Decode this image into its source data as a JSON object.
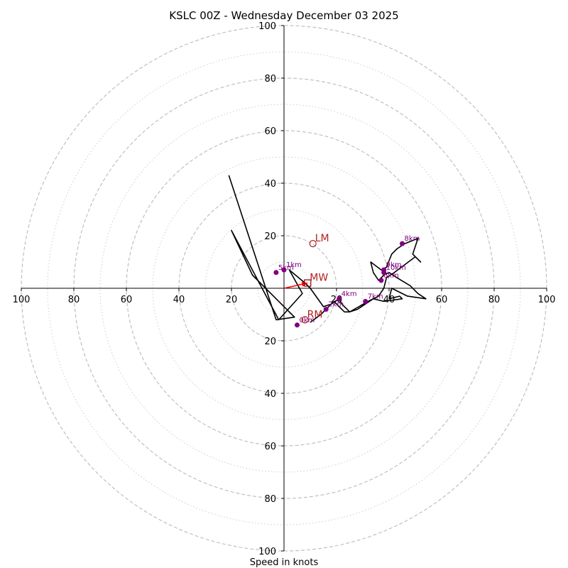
{
  "chart_data": {
    "type": "scatter",
    "chart_kind": "hodograph",
    "title": "KSLC 00Z - Wednesday December 03 2025",
    "xlabel": "Speed in knots",
    "ylabel": "",
    "xlim": [
      -100,
      100
    ],
    "ylim": [
      -100,
      100
    ],
    "grid": true,
    "ring_major": [
      20,
      40,
      60,
      80,
      100
    ],
    "ring_minor": [
      10,
      30,
      50,
      70,
      90
    ],
    "x_ticks": [
      {
        "value": -100,
        "label": "100"
      },
      {
        "value": -80,
        "label": "80"
      },
      {
        "value": -60,
        "label": "60"
      },
      {
        "value": -40,
        "label": "40"
      },
      {
        "value": -20,
        "label": "20"
      },
      {
        "value": 20,
        "label": "20"
      },
      {
        "value": 40,
        "label": "40"
      },
      {
        "value": 60,
        "label": "60"
      },
      {
        "value": 80,
        "label": "80"
      },
      {
        "value": 100,
        "label": "100"
      }
    ],
    "y_ticks": [
      {
        "value": 100,
        "label": "100"
      },
      {
        "value": 80,
        "label": "80"
      },
      {
        "value": 60,
        "label": "60"
      },
      {
        "value": 40,
        "label": "40"
      },
      {
        "value": 20,
        "label": "20"
      },
      {
        "value": -20,
        "label": "20"
      },
      {
        "value": -40,
        "label": "40"
      },
      {
        "value": -60,
        "label": "60"
      },
      {
        "value": -80,
        "label": "80"
      },
      {
        "value": -100,
        "label": "100"
      }
    ],
    "trace": [
      [
        -21,
        43
      ],
      [
        -3,
        -12
      ],
      [
        4,
        -11
      ],
      [
        -12,
        5
      ],
      [
        -20,
        22
      ],
      [
        -2,
        -12
      ],
      [
        7,
        -2
      ],
      [
        2,
        7
      ],
      [
        8,
        2
      ],
      [
        10,
        0
      ],
      [
        15,
        -7
      ],
      [
        18,
        -6
      ],
      [
        21,
        -4
      ],
      [
        22,
        -6
      ],
      [
        25,
        -9
      ],
      [
        32,
        -5
      ],
      [
        36,
        -3
      ],
      [
        38,
        0
      ],
      [
        39,
        4
      ],
      [
        42,
        6
      ],
      [
        50,
        12
      ],
      [
        52,
        10
      ],
      [
        49,
        13
      ],
      [
        51,
        19
      ],
      [
        46,
        17
      ],
      [
        43,
        15
      ],
      [
        41,
        13
      ],
      [
        39,
        8
      ],
      [
        37,
        7
      ],
      [
        33,
        10
      ],
      [
        34,
        6
      ],
      [
        36,
        3
      ],
      [
        38,
        5
      ],
      [
        40,
        6
      ],
      [
        43,
        4
      ],
      [
        48,
        1
      ],
      [
        51,
        -2
      ],
      [
        54,
        -4
      ],
      [
        47,
        -3
      ],
      [
        41,
        0
      ],
      [
        40,
        -4
      ],
      [
        44,
        -3
      ],
      [
        45,
        -4
      ],
      [
        38,
        -5
      ],
      [
        34,
        -4
      ],
      [
        28,
        -8
      ],
      [
        25,
        -9
      ],
      [
        23,
        -9
      ],
      [
        19,
        -5
      ],
      [
        14,
        -10
      ],
      [
        10,
        -13
      ]
    ],
    "height_markers": [
      {
        "label": "0km",
        "x": 5,
        "y": -14
      },
      {
        "label": "1km",
        "x": 0,
        "y": 7
      },
      {
        "label": "2km",
        "x": 16,
        "y": -8
      },
      {
        "label": "4km",
        "x": 21,
        "y": -4
      },
      {
        "label": "5km",
        "x": -3,
        "y": 6
      },
      {
        "label": "6km",
        "x": 37,
        "y": 3
      },
      {
        "label": "7km",
        "x": 31,
        "y": -5
      },
      {
        "label": "8km",
        "x": 45,
        "y": 17
      },
      {
        "label": "9km",
        "x": 38,
        "y": 7
      },
      {
        "label": "10km",
        "x": 38,
        "y": 6
      }
    ],
    "motion_markers": [
      {
        "label": "LM",
        "x": 11,
        "y": 17,
        "symbol": "circle"
      },
      {
        "label": "MW",
        "x": 9,
        "y": 2,
        "symbol": "square"
      },
      {
        "label": "RM",
        "x": 8,
        "y": -12,
        "symbol": "circle"
      }
    ],
    "storm_motion_vector": {
      "from": [
        0,
        0
      ],
      "to": [
        9,
        2
      ],
      "color": "#ff0000"
    },
    "colors": {
      "trace": "#000000",
      "height_marker": "#800080",
      "motion_label": "#b22222",
      "grid": "#bbbbbb"
    }
  }
}
